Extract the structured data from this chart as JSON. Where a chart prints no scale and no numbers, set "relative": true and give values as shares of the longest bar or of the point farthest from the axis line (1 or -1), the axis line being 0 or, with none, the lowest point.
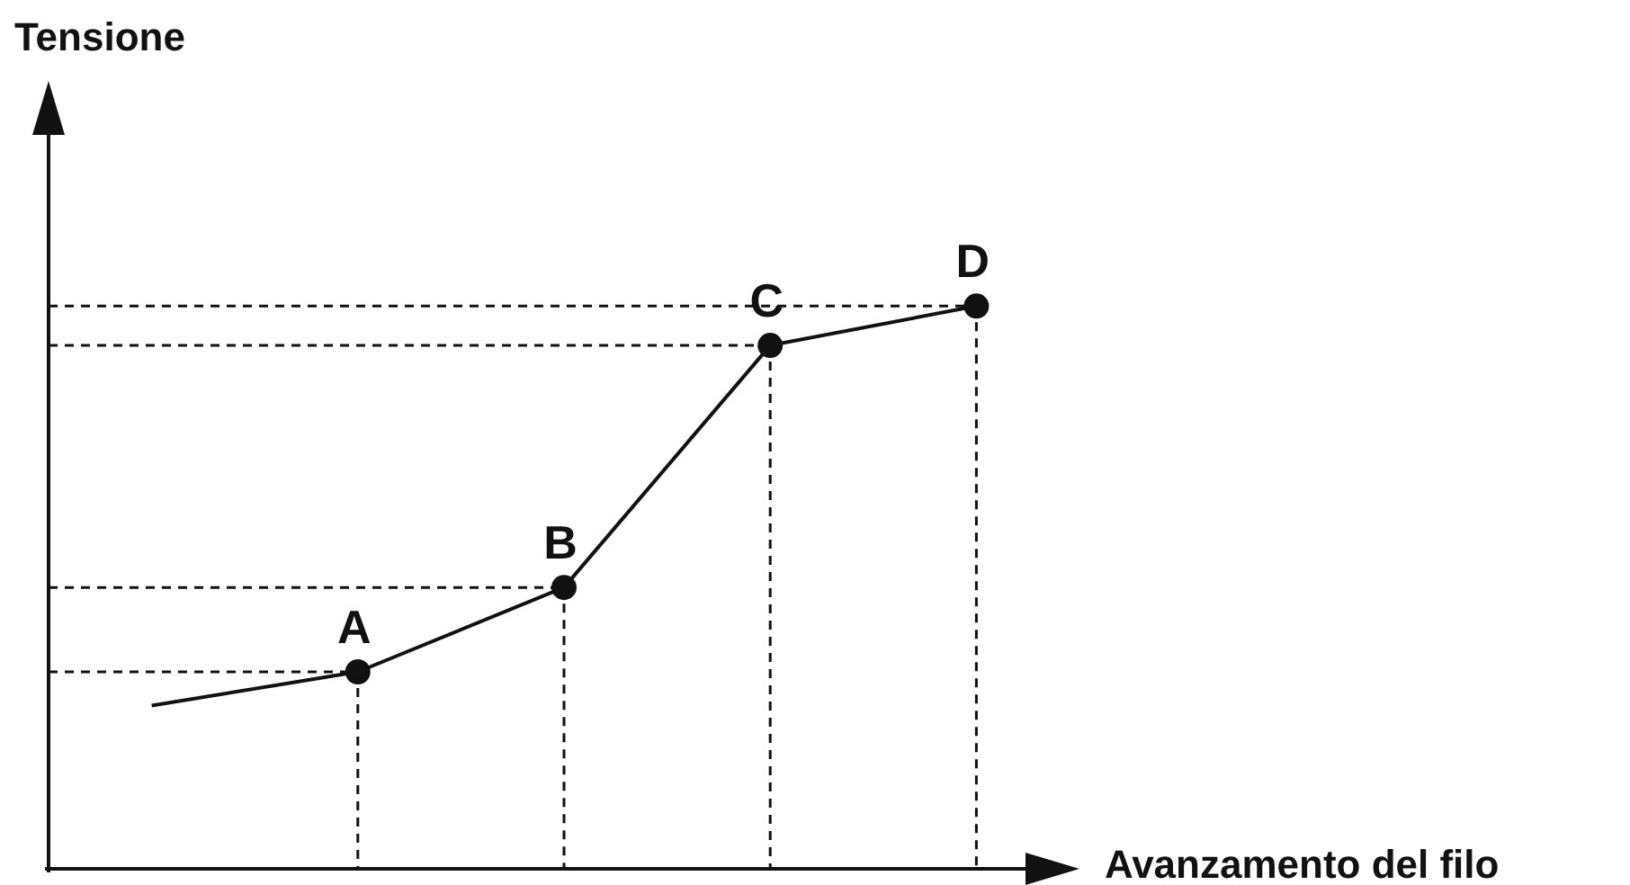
{
  "chart_data": {
    "type": "line",
    "relative": true,
    "title": "Tensione",
    "xlabel": "Avanzamento del filo",
    "categories": [
      null,
      null,
      null,
      null,
      null
    ],
    "series": [
      {
        "color": "#111111",
        "marker": "circle",
        "values": [
          0.29,
          0.35,
          0.5,
          0.93,
          1.0
        ]
      }
    ],
    "annotations": [
      {
        "text": "A",
        "y": 0.35
      },
      {
        "text": "B",
        "y": 0.5
      },
      {
        "text": "C",
        "y": 0.93
      },
      {
        "text": "D",
        "y": 1.0
      }
    ],
    "legend": false,
    "line_style": "solid"
  }
}
